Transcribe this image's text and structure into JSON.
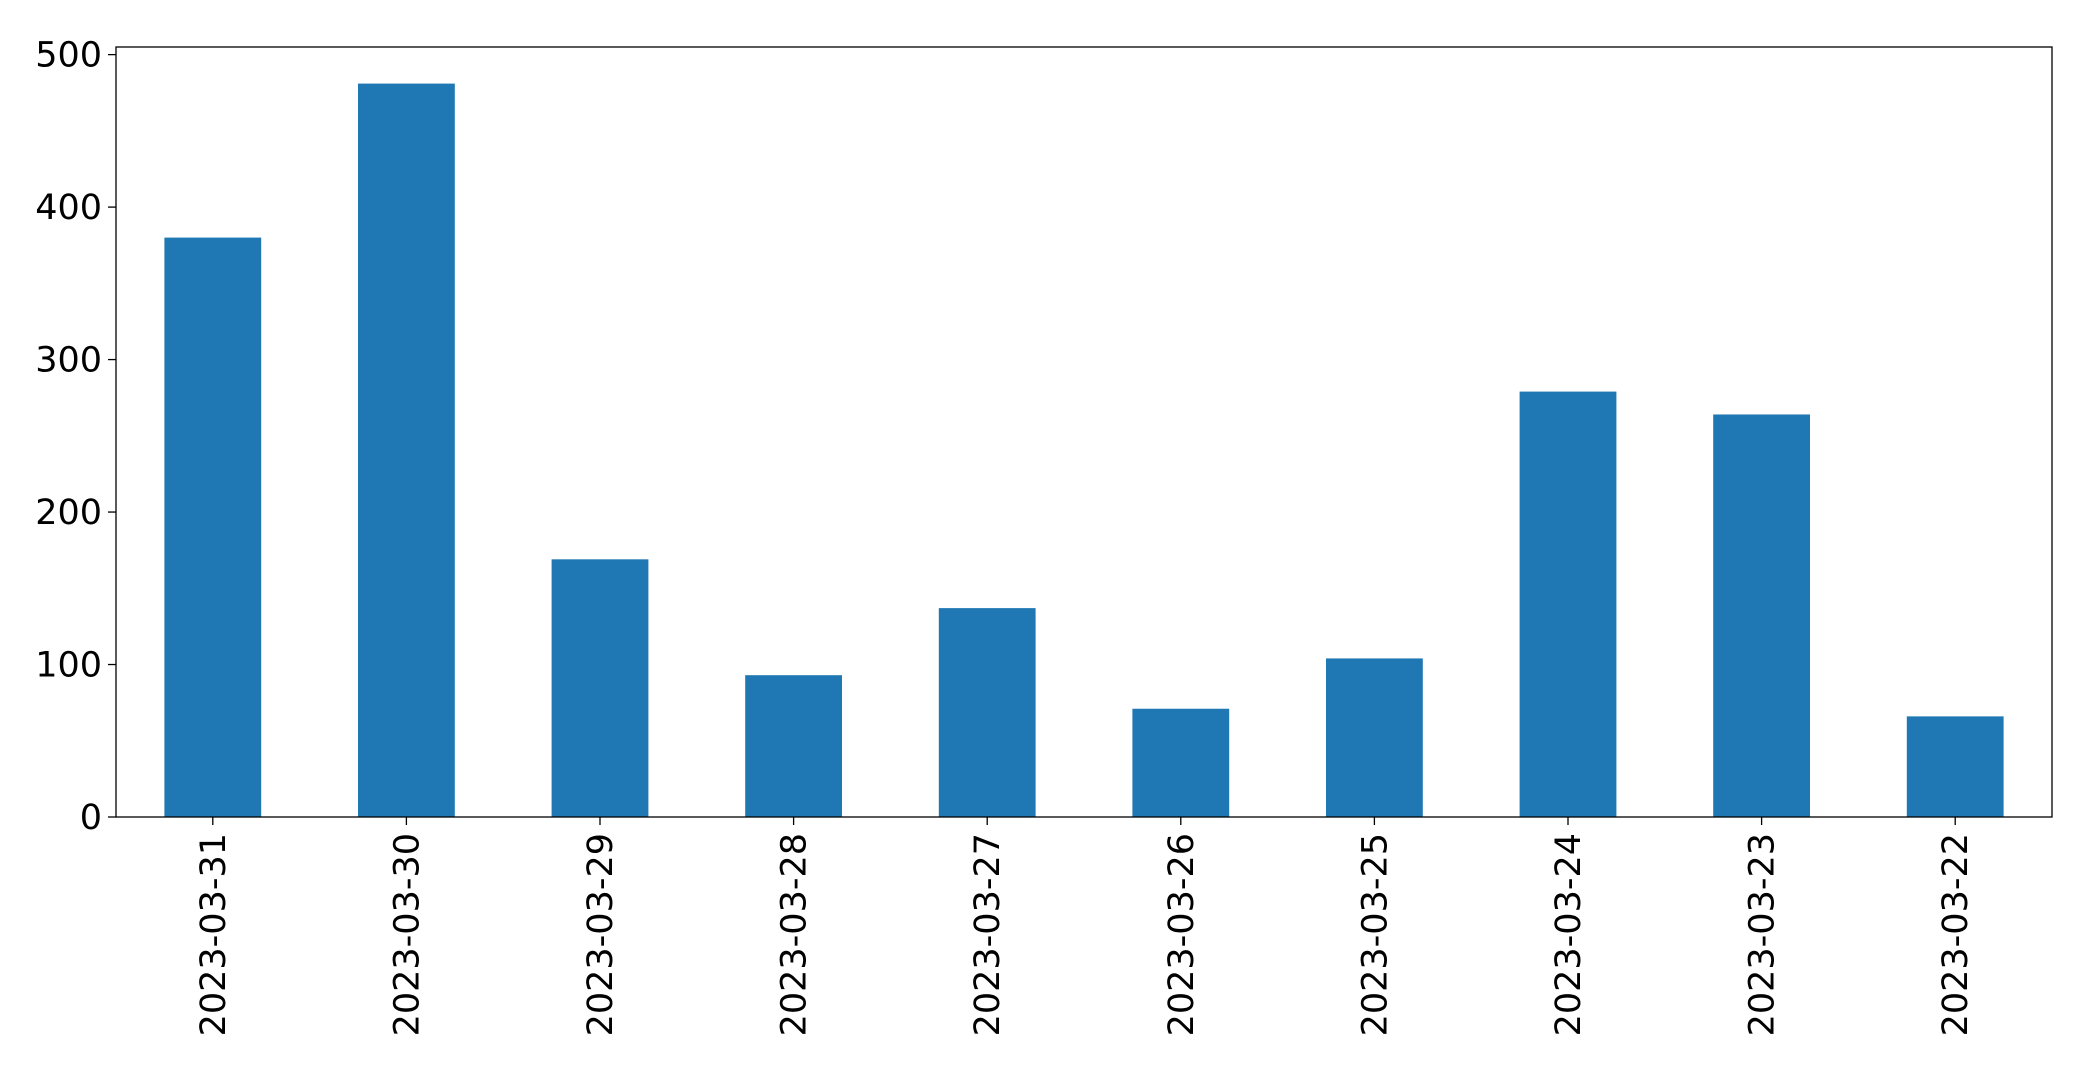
{
  "chart_data": {
    "type": "bar",
    "categories": [
      "2023-03-31",
      "2023-03-30",
      "2023-03-29",
      "2023-03-28",
      "2023-03-27",
      "2023-03-26",
      "2023-03-25",
      "2023-03-24",
      "2023-03-23",
      "2023-03-22"
    ],
    "values": [
      380,
      481,
      169,
      93,
      137,
      71,
      104,
      279,
      264,
      66
    ],
    "color": "#1f77b4",
    "ylim": [
      0,
      505
    ],
    "yticks": [
      0,
      100,
      200,
      300,
      400,
      500
    ],
    "grid": false
  }
}
